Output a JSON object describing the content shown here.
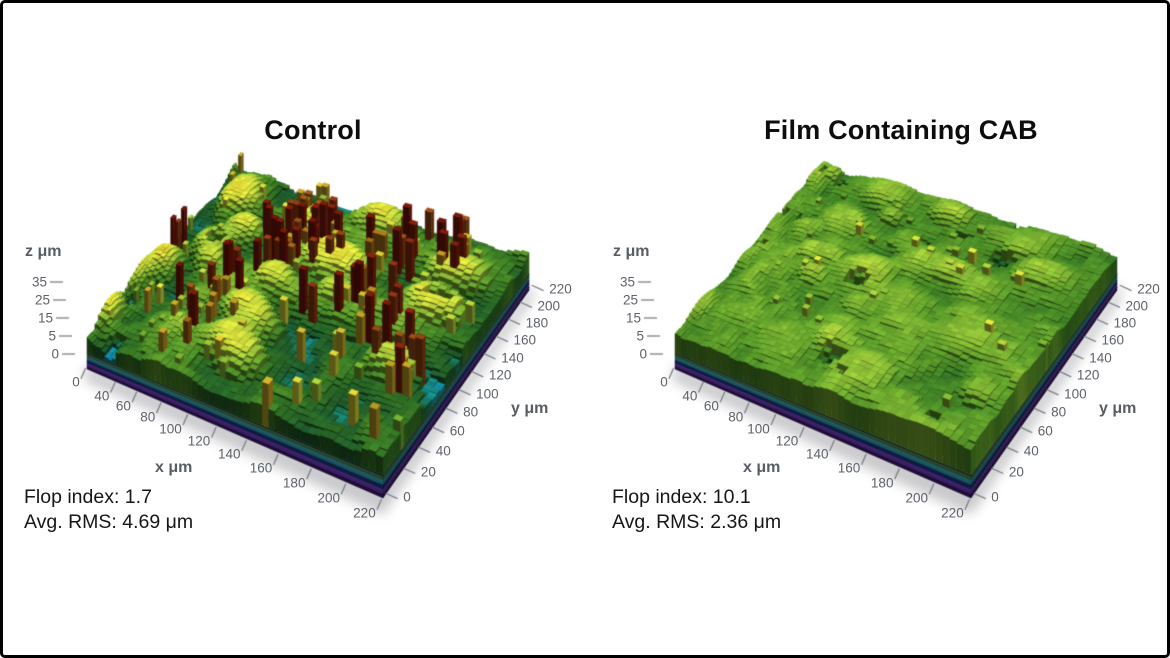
{
  "figure": {
    "type": "3d-surface-topography-comparison",
    "background": "#ffffff",
    "border_color": "#000000",
    "text_color": "#161616",
    "axis_text_color": "#5d6269"
  },
  "chart_data": [
    {
      "type": "surface",
      "title": "Control",
      "xlabel": "x μm",
      "ylabel": "y μm",
      "zlabel": "z μm",
      "x_range": [
        0,
        220
      ],
      "y_range": [
        0,
        220
      ],
      "z_range_um": [
        0,
        35
      ],
      "x_ticks": [
        0,
        40,
        60,
        80,
        100,
        120,
        140,
        160,
        180,
        200,
        220
      ],
      "y_ticks": [
        0,
        20,
        40,
        60,
        80,
        100,
        120,
        140,
        160,
        180,
        200,
        220
      ],
      "z_ticks": [
        0,
        5,
        15,
        25,
        35
      ],
      "flop_index": 1.7,
      "avg_rms_um": 4.69,
      "annotations": [
        "Flop index: 1.7",
        "Avg. RMS: 4.69 μm"
      ],
      "surface_character": "rough film: tall dark-red spikes, flat yellow flake plateaus, deep green valleys, scattered cyan pits",
      "surface_style": {
        "seed": 20,
        "mean": 8.5,
        "amps": [
          4.6,
          2.4,
          1.7
        ],
        "plateau_count": 24,
        "plateau_h": [
          16,
          19.5
        ],
        "plateau_r": [
          0.05,
          0.11
        ],
        "pit_count": 9,
        "pit_h": [
          1.2,
          3.2
        ],
        "pit_r": [
          0.02,
          0.05
        ],
        "spike_clusters": 26,
        "spikes_per_cluster": [
          2,
          6
        ],
        "spike_h": [
          21,
          35
        ],
        "needle_count": 90,
        "needle_h": [
          13,
          22
        ]
      }
    },
    {
      "type": "surface",
      "title": "Film Containing CAB",
      "xlabel": "x μm",
      "ylabel": "y μm",
      "zlabel": "z μm",
      "x_range": [
        0,
        220
      ],
      "y_range": [
        0,
        220
      ],
      "z_range_um": [
        0,
        35
      ],
      "x_ticks": [
        0,
        40,
        60,
        80,
        100,
        120,
        140,
        160,
        180,
        200,
        220
      ],
      "y_ticks": [
        0,
        20,
        40,
        60,
        80,
        100,
        120,
        140,
        160,
        180,
        200,
        220
      ],
      "z_ticks": [
        0,
        5,
        15,
        25,
        35
      ],
      "flop_index": 10.1,
      "avg_rms_um": 2.36,
      "annotations": [
        "Flop index: 10.1",
        "Avg. RMS: 2.36 μm"
      ],
      "surface_character": "smooth uniform yellow-green flake surface, shallow teal crevices, few low spikes",
      "surface_style": {
        "seed": 64,
        "mean": 11.3,
        "amps": [
          1.9,
          1.4,
          1.1
        ],
        "plateau_count": 34,
        "plateau_h": [
          13,
          15.8
        ],
        "plateau_r": [
          0.04,
          0.1
        ],
        "pit_count": 13,
        "pit_h": [
          2.2,
          4.6
        ],
        "pit_r": [
          0.015,
          0.045
        ],
        "spike_clusters": 8,
        "spikes_per_cluster": [
          1,
          3
        ],
        "spike_h": [
          14,
          19
        ],
        "needle_count": 25,
        "needle_h": [
          12,
          15
        ]
      }
    }
  ],
  "colormap": [
    [
      0,
      "#0c2a50"
    ],
    [
      2,
      "#1396bd"
    ],
    [
      3.5,
      "#18897d"
    ],
    [
      5,
      "#1f5c2e"
    ],
    [
      7.5,
      "#2f6f26"
    ],
    [
      10,
      "#498c28"
    ],
    [
      12.5,
      "#69a72e"
    ],
    [
      14.5,
      "#8fc238"
    ],
    [
      16.5,
      "#b9d83e"
    ],
    [
      18.5,
      "#e6e83f"
    ],
    [
      20.5,
      "#d9c32f"
    ],
    [
      23,
      "#b07c1e"
    ],
    [
      26,
      "#9c4a16"
    ],
    [
      29,
      "#8a2410"
    ],
    [
      35,
      "#731109"
    ]
  ],
  "base_bands": {
    "colors": [
      "#0a1a20",
      "#24432c",
      "#175560",
      "#0d1d40",
      "#3e1c6a",
      "#1d0c36"
    ],
    "heights": [
      2,
      4,
      4,
      5,
      4,
      4
    ]
  }
}
